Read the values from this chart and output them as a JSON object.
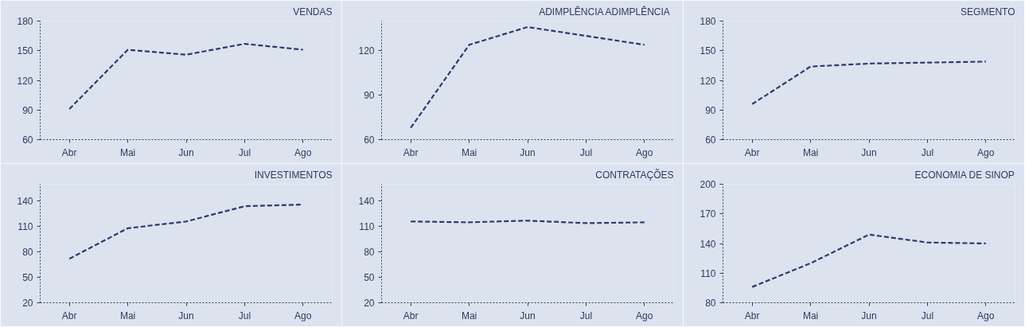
{
  "chart_data": [
    {
      "type": "line",
      "title": "VENDAS",
      "categories": [
        "Abr",
        "Mai",
        "Jun",
        "Jul",
        "Ago"
      ],
      "values": [
        91,
        151,
        146,
        157,
        151
      ],
      "color": "#2e3a6e",
      "ylim": [
        60,
        180
      ],
      "yticks": [
        60,
        90,
        120,
        150,
        180
      ],
      "line_style": "dashed",
      "grid": false
    },
    {
      "type": "line",
      "title": "ADIMPLÊNCIA  ADIMPLÊNCIA",
      "categories": [
        "Abr",
        "Mai",
        "Jun",
        "Jul",
        "Ago"
      ],
      "values": [
        68,
        124,
        136,
        130,
        124
      ],
      "color": "#2e3a6e",
      "ylim": [
        60,
        140
      ],
      "yticks": [
        60,
        90,
        120
      ],
      "line_style": "dashed",
      "grid": false
    },
    {
      "type": "line",
      "title": "SEGMENTO",
      "categories": [
        "Abr",
        "Mai",
        "Jun",
        "Jul",
        "Ago"
      ],
      "values": [
        96,
        134,
        137,
        138,
        139
      ],
      "color": "#2e3a6e",
      "ylim": [
        60,
        180
      ],
      "yticks": [
        60,
        90,
        120,
        150,
        180
      ],
      "line_style": "dashed",
      "grid": false
    },
    {
      "type": "line",
      "title": "INVESTIMENTOS",
      "categories": [
        "Abr",
        "Mai",
        "Jun",
        "Jul",
        "Ago"
      ],
      "values": [
        72,
        108,
        116,
        134,
        136
      ],
      "color": "#2e3a6e",
      "ylim": [
        20,
        160
      ],
      "yticks": [
        20,
        50,
        80,
        110,
        140
      ],
      "line_style": "dashed",
      "grid": false
    },
    {
      "type": "line",
      "title": "CONTRATAÇÕES",
      "categories": [
        "Abr",
        "Mai",
        "Jun",
        "Jul",
        "Ago"
      ],
      "values": [
        116,
        115,
        117,
        114,
        115
      ],
      "color": "#2e3a6e",
      "ylim": [
        20,
        160
      ],
      "yticks": [
        20,
        50,
        80,
        110,
        140
      ],
      "line_style": "dashed",
      "grid": false
    },
    {
      "type": "line",
      "title": "ECONOMIA DE SINOP",
      "categories": [
        "Abr",
        "Mai",
        "Jun",
        "Jul",
        "Ago"
      ],
      "values": [
        96,
        120,
        149,
        141,
        140
      ],
      "color": "#2e3a6e",
      "ylim": [
        80,
        200
      ],
      "yticks": [
        80,
        110,
        140,
        170,
        200
      ],
      "line_style": "dashed",
      "grid": false
    }
  ]
}
